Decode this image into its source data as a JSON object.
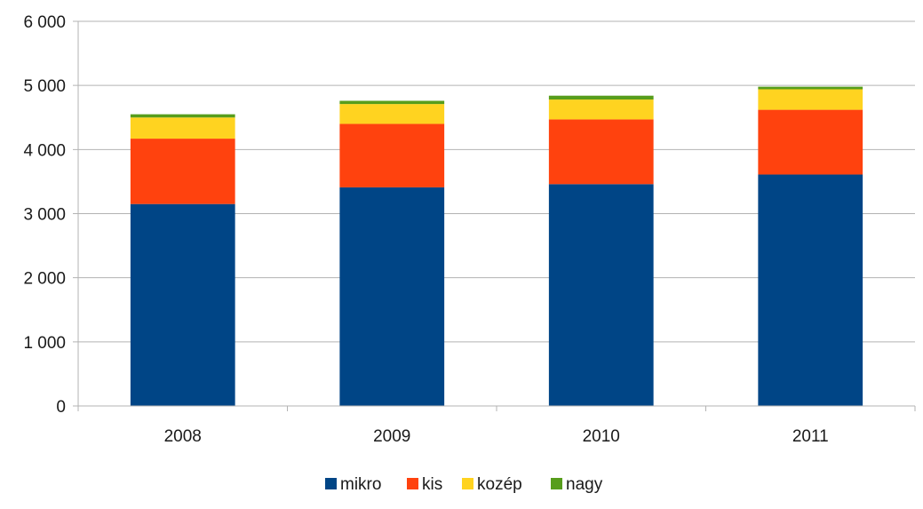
{
  "chart_data": {
    "type": "bar",
    "stacked": true,
    "categories": [
      "2008",
      "2009",
      "2010",
      "2011"
    ],
    "series": [
      {
        "name": "mikro",
        "values": [
          3150,
          3410,
          3460,
          3610
        ],
        "color": "#004586"
      },
      {
        "name": "kis",
        "values": [
          1020,
          990,
          1010,
          1010
        ],
        "color": "#ff420e"
      },
      {
        "name": "kozép",
        "values": [
          330,
          310,
          310,
          320
        ],
        "color": "#ffd320"
      },
      {
        "name": "nagy",
        "values": [
          50,
          50,
          60,
          40
        ],
        "color": "#579d1c"
      }
    ],
    "title": "",
    "xlabel": "",
    "ylabel": "",
    "ylim": [
      0,
      6000
    ],
    "yticks": [
      0,
      1000,
      2000,
      3000,
      4000,
      5000,
      6000
    ],
    "ytick_labels": [
      "0",
      "1 000",
      "2 000",
      "3 000",
      "4 000",
      "5 000",
      "6 000"
    ],
    "grid": true,
    "legend_position": "bottom"
  }
}
